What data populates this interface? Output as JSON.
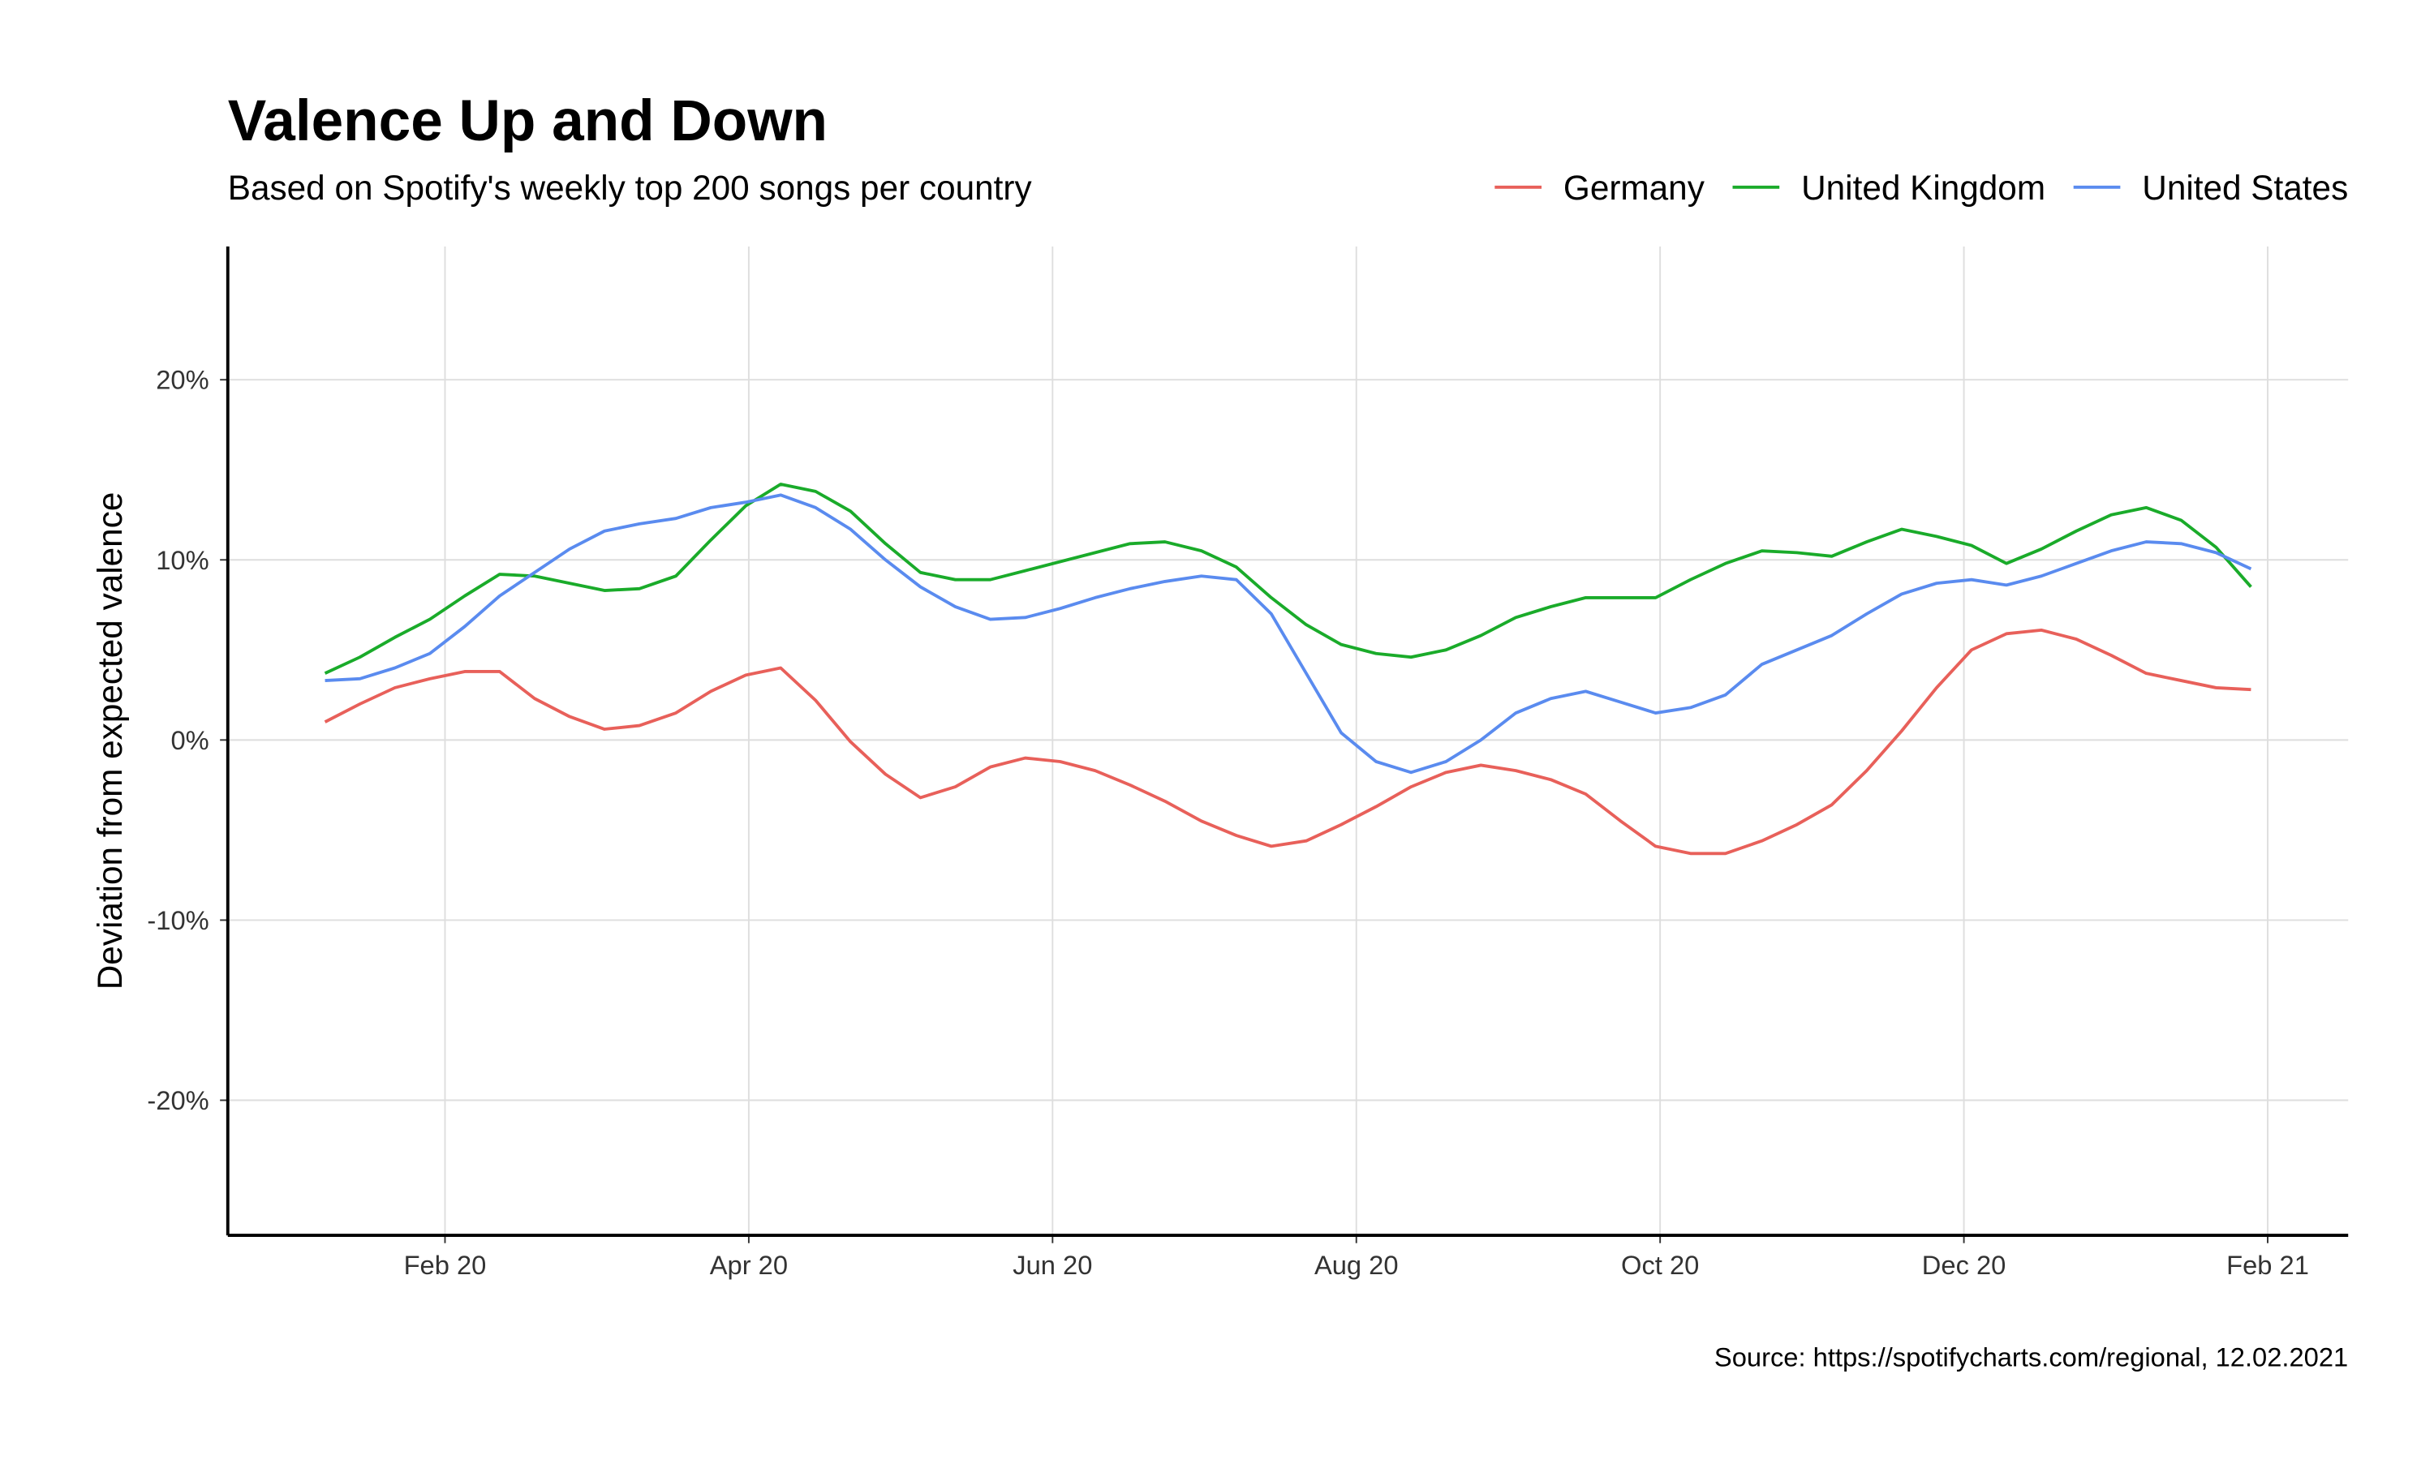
{
  "chart_data": {
    "type": "line",
    "title": "Valence Up and Down",
    "subtitle": "Based on Spotify's weekly top 200 songs per country",
    "ylabel": "Deviation from expected valence",
    "source": "Source: https://spotifycharts.com/regional, 12.02.2021",
    "grid": true,
    "x": [
      0.21,
      0.44,
      0.67,
      0.9,
      1.13,
      1.36,
      1.59,
      1.82,
      2.05,
      2.28,
      2.52,
      2.75,
      2.98,
      3.21,
      3.44,
      3.67,
      3.9,
      4.13,
      4.36,
      4.59,
      4.82,
      5.05,
      5.28,
      5.51,
      5.74,
      5.98,
      6.21,
      6.44,
      6.67,
      6.9,
      7.13,
      7.36,
      7.59,
      7.82,
      8.05,
      8.28,
      8.51,
      8.74,
      8.97,
      9.2,
      9.43,
      9.67,
      9.9,
      10.13,
      10.36,
      10.59,
      10.82,
      11.05,
      11.28,
      11.51,
      11.74,
      11.97,
      12.2,
      12.43,
      12.66,
      12.89
    ],
    "xlim": [
      -0.43,
      13.53
    ],
    "xticks": [
      {
        "value": 1,
        "label": "Feb 20"
      },
      {
        "value": 3,
        "label": "Apr 20"
      },
      {
        "value": 5,
        "label": "Jun 20"
      },
      {
        "value": 7,
        "label": "Aug 20"
      },
      {
        "value": 9,
        "label": "Oct 20"
      },
      {
        "value": 11,
        "label": "Dec 20"
      },
      {
        "value": 13,
        "label": "Feb 21"
      }
    ],
    "ylim": [
      -27.5,
      27.4
    ],
    "yticks": [
      {
        "value": -20,
        "label": "-20%"
      },
      {
        "value": -10,
        "label": "-10%"
      },
      {
        "value": 0,
        "label": "0%"
      },
      {
        "value": 10,
        "label": "10%"
      },
      {
        "value": 20,
        "label": "20%"
      }
    ],
    "series": [
      {
        "name": "Germany",
        "color": "#e8605a",
        "values": [
          1.0,
          2.0,
          2.9,
          3.4,
          3.8,
          3.8,
          2.3,
          1.3,
          0.6,
          0.8,
          1.5,
          2.7,
          3.6,
          4.0,
          2.2,
          -0.1,
          -1.9,
          -3.2,
          -2.6,
          -1.5,
          -1.0,
          -1.2,
          -1.7,
          -2.5,
          -3.4,
          -4.5,
          -5.3,
          -5.9,
          -5.6,
          -4.7,
          -3.7,
          -2.6,
          -1.8,
          -1.4,
          -1.7,
          -2.2,
          -3.0,
          -4.5,
          -5.9,
          -6.3,
          -6.3,
          -5.6,
          -4.7,
          -3.6,
          -1.7,
          0.5,
          2.9,
          5.0,
          5.9,
          6.1,
          5.6,
          4.7,
          3.7,
          3.3,
          2.9,
          2.8
        ]
      },
      {
        "name": "United Kingdom",
        "color": "#1aab2a",
        "values": [
          3.7,
          4.6,
          5.7,
          6.7,
          8.0,
          9.2,
          9.1,
          8.7,
          8.3,
          8.4,
          9.1,
          11.1,
          13.0,
          14.2,
          13.8,
          12.7,
          10.9,
          9.3,
          8.9,
          8.9,
          9.4,
          9.9,
          10.4,
          10.9,
          11.0,
          10.5,
          9.6,
          7.9,
          6.4,
          5.3,
          4.8,
          4.6,
          5.0,
          5.8,
          6.8,
          7.4,
          7.9,
          7.9,
          7.9,
          8.9,
          9.8,
          10.5,
          10.4,
          10.2,
          11.0,
          11.7,
          11.3,
          10.8,
          9.8,
          10.6,
          11.6,
          12.5,
          12.9,
          12.2,
          10.7,
          8.5
        ]
      },
      {
        "name": "United States",
        "color": "#5a8bef",
        "values": [
          3.3,
          3.4,
          4.0,
          4.8,
          6.3,
          8.0,
          9.3,
          10.6,
          11.6,
          12.0,
          12.3,
          12.9,
          13.2,
          13.6,
          12.9,
          11.7,
          10.0,
          8.5,
          7.4,
          6.7,
          6.8,
          7.3,
          7.9,
          8.4,
          8.8,
          9.1,
          8.9,
          7.0,
          3.7,
          0.4,
          -1.2,
          -1.8,
          -1.2,
          0.0,
          1.5,
          2.3,
          2.7,
          2.1,
          1.5,
          1.8,
          2.5,
          4.2,
          5.0,
          5.8,
          7.0,
          8.1,
          8.7,
          8.9,
          8.6,
          9.1,
          9.8,
          10.5,
          11.0,
          10.9,
          10.4,
          9.5
        ]
      }
    ]
  }
}
